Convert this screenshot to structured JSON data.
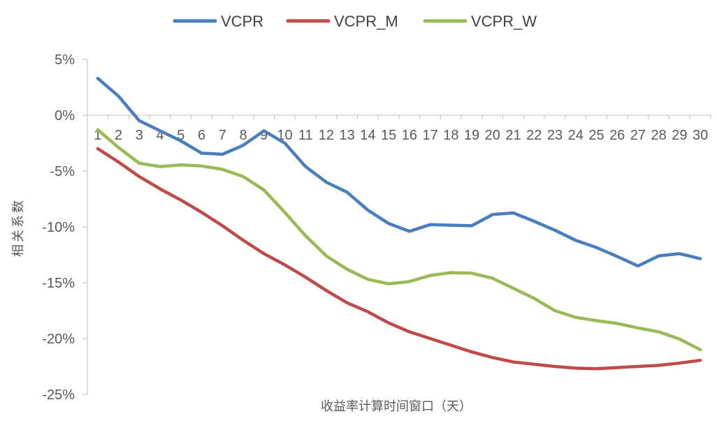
{
  "chart_data": {
    "type": "line",
    "title": "",
    "xlabel": "收益率计算时间窗口（天）",
    "ylabel": "相关系数",
    "categories": [
      "1",
      "2",
      "3",
      "4",
      "5",
      "6",
      "7",
      "8",
      "9",
      "10",
      "11",
      "12",
      "13",
      "14",
      "15",
      "16",
      "17",
      "18",
      "19",
      "20",
      "21",
      "22",
      "23",
      "24",
      "25",
      "26",
      "27",
      "28",
      "29",
      "30"
    ],
    "ylim": [
      -25,
      5
    ],
    "yticks": [
      5,
      0,
      -5,
      -10,
      -15,
      -20,
      -25
    ],
    "ytick_labels": [
      "5%",
      "0%",
      "-5%",
      "-10%",
      "-15%",
      "-20%",
      "-25%"
    ],
    "grid": false,
    "legend_position": "top",
    "series": [
      {
        "name": "VCPR",
        "color": "#4a7ebb",
        "values": [
          3.3,
          1.7,
          -0.5,
          -1.4,
          -2.3,
          -3.4,
          -3.5,
          -2.7,
          -1.4,
          -2.5,
          -4.6,
          -6.0,
          -6.9,
          -8.5,
          -9.7,
          -10.4,
          -9.8,
          -9.85,
          -9.9,
          -8.9,
          -8.75,
          -9.5,
          -10.3,
          -11.2,
          -11.85,
          -12.65,
          -13.5,
          -12.6,
          -12.4,
          -12.85
        ]
      },
      {
        "name": "VCPR_M",
        "color": "#be4b48",
        "values": [
          -3.0,
          -4.2,
          -5.5,
          -6.6,
          -7.6,
          -8.7,
          -9.9,
          -11.2,
          -12.4,
          -13.4,
          -14.5,
          -15.7,
          -16.8,
          -17.6,
          -18.6,
          -19.4,
          -20.0,
          -20.6,
          -21.2,
          -21.7,
          -22.1,
          -22.3,
          -22.5,
          -22.65,
          -22.7,
          -22.6,
          -22.5,
          -22.4,
          -22.2,
          -21.95
        ]
      },
      {
        "name": "VCPR_W",
        "color": "#98b954",
        "values": [
          -1.3,
          -2.9,
          -4.3,
          -4.6,
          -4.45,
          -4.55,
          -4.85,
          -5.5,
          -6.7,
          -8.7,
          -10.8,
          -12.6,
          -13.8,
          -14.7,
          -15.1,
          -14.9,
          -14.35,
          -14.1,
          -14.15,
          -14.6,
          -15.5,
          -16.4,
          -17.5,
          -18.1,
          -18.4,
          -18.65,
          -19.05,
          -19.4,
          -20.05,
          -21.0
        ]
      }
    ]
  }
}
